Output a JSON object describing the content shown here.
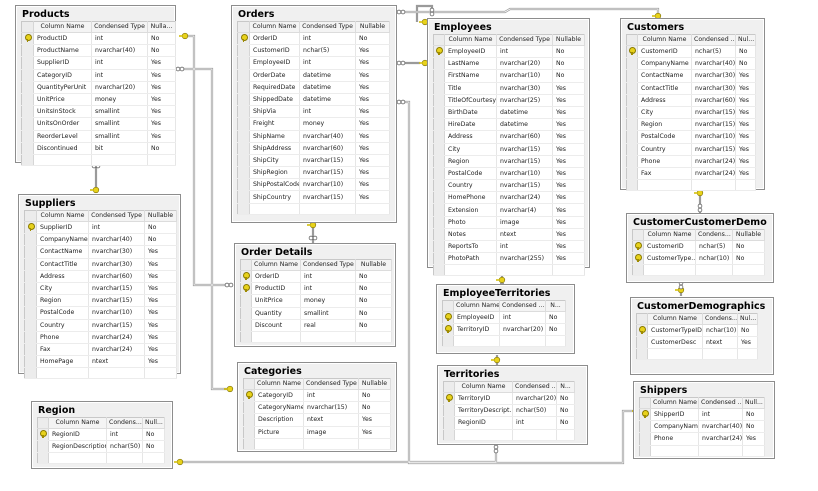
{
  "diagram": {
    "tool": "Database Diagram",
    "header_labels": {
      "column_name": "Column Name",
      "condensed_type": "Condensed Type",
      "nullable": "Nullable"
    },
    "colors": {
      "border": "#8d8d8d",
      "key": "#e8d21c",
      "line": "#888888",
      "background": "#ffffff"
    }
  },
  "tables": {
    "products": {
      "title": "Products",
      "headers": [
        "Column Name",
        "Condensed Type",
        "Nulla..."
      ],
      "rows": [
        {
          "pk": true,
          "name": "ProductID",
          "type": "int",
          "nullable": "No"
        },
        {
          "pk": false,
          "name": "ProductName",
          "type": "nvarchar(40)",
          "nullable": "No"
        },
        {
          "pk": false,
          "name": "SupplierID",
          "type": "int",
          "nullable": "Yes"
        },
        {
          "pk": false,
          "name": "CategoryID",
          "type": "int",
          "nullable": "Yes"
        },
        {
          "pk": false,
          "name": "QuantityPerUnit",
          "type": "nvarchar(20)",
          "nullable": "Yes"
        },
        {
          "pk": false,
          "name": "UnitPrice",
          "type": "money",
          "nullable": "Yes"
        },
        {
          "pk": false,
          "name": "UnitsInStock",
          "type": "smallint",
          "nullable": "Yes"
        },
        {
          "pk": false,
          "name": "UnitsOnOrder",
          "type": "smallint",
          "nullable": "Yes"
        },
        {
          "pk": false,
          "name": "ReorderLevel",
          "type": "smallint",
          "nullable": "Yes"
        },
        {
          "pk": false,
          "name": "Discontinued",
          "type": "bit",
          "nullable": "No"
        }
      ]
    },
    "suppliers": {
      "title": "Suppliers",
      "headers": [
        "Column Name",
        "Condensed Type",
        "Nullable"
      ],
      "rows": [
        {
          "pk": true,
          "name": "SupplierID",
          "type": "int",
          "nullable": "No"
        },
        {
          "pk": false,
          "name": "CompanyName",
          "type": "nvarchar(40)",
          "nullable": "No"
        },
        {
          "pk": false,
          "name": "ContactName",
          "type": "nvarchar(30)",
          "nullable": "Yes"
        },
        {
          "pk": false,
          "name": "ContactTitle",
          "type": "nvarchar(30)",
          "nullable": "Yes"
        },
        {
          "pk": false,
          "name": "Address",
          "type": "nvarchar(60)",
          "nullable": "Yes"
        },
        {
          "pk": false,
          "name": "City",
          "type": "nvarchar(15)",
          "nullable": "Yes"
        },
        {
          "pk": false,
          "name": "Region",
          "type": "nvarchar(15)",
          "nullable": "Yes"
        },
        {
          "pk": false,
          "name": "PostalCode",
          "type": "nvarchar(10)",
          "nullable": "Yes"
        },
        {
          "pk": false,
          "name": "Country",
          "type": "nvarchar(15)",
          "nullable": "Yes"
        },
        {
          "pk": false,
          "name": "Phone",
          "type": "nvarchar(24)",
          "nullable": "Yes"
        },
        {
          "pk": false,
          "name": "Fax",
          "type": "nvarchar(24)",
          "nullable": "Yes"
        },
        {
          "pk": false,
          "name": "HomePage",
          "type": "ntext",
          "nullable": "Yes"
        }
      ]
    },
    "region": {
      "title": "Region",
      "headers": [
        "Column Name",
        "Condens...",
        "Null..."
      ],
      "rows": [
        {
          "pk": true,
          "name": "RegionID",
          "type": "int",
          "nullable": "No"
        },
        {
          "pk": false,
          "name": "RegionDescription",
          "type": "nchar(50)",
          "nullable": "No"
        }
      ]
    },
    "orders": {
      "title": "Orders",
      "headers": [
        "Column Name",
        "Condensed Type",
        "Nullable"
      ],
      "rows": [
        {
          "pk": true,
          "name": "OrderID",
          "type": "int",
          "nullable": "No"
        },
        {
          "pk": false,
          "name": "CustomerID",
          "type": "nchar(5)",
          "nullable": "Yes"
        },
        {
          "pk": false,
          "name": "EmployeeID",
          "type": "int",
          "nullable": "Yes"
        },
        {
          "pk": false,
          "name": "OrderDate",
          "type": "datetime",
          "nullable": "Yes"
        },
        {
          "pk": false,
          "name": "RequiredDate",
          "type": "datetime",
          "nullable": "Yes"
        },
        {
          "pk": false,
          "name": "ShippedDate",
          "type": "datetime",
          "nullable": "Yes"
        },
        {
          "pk": false,
          "name": "ShipVia",
          "type": "int",
          "nullable": "Yes"
        },
        {
          "pk": false,
          "name": "Freight",
          "type": "money",
          "nullable": "Yes"
        },
        {
          "pk": false,
          "name": "ShipName",
          "type": "nvarchar(40)",
          "nullable": "Yes"
        },
        {
          "pk": false,
          "name": "ShipAddress",
          "type": "nvarchar(60)",
          "nullable": "Yes"
        },
        {
          "pk": false,
          "name": "ShipCity",
          "type": "nvarchar(15)",
          "nullable": "Yes"
        },
        {
          "pk": false,
          "name": "ShipRegion",
          "type": "nvarchar(15)",
          "nullable": "Yes"
        },
        {
          "pk": false,
          "name": "ShipPostalCode",
          "type": "nvarchar(10)",
          "nullable": "Yes"
        },
        {
          "pk": false,
          "name": "ShipCountry",
          "type": "nvarchar(15)",
          "nullable": "Yes"
        }
      ]
    },
    "order_details": {
      "title": "Order Details",
      "headers": [
        "Column Name",
        "Condensed Type",
        "Nullable"
      ],
      "rows": [
        {
          "pk": true,
          "name": "OrderID",
          "type": "int",
          "nullable": "No"
        },
        {
          "pk": true,
          "name": "ProductID",
          "type": "int",
          "nullable": "No"
        },
        {
          "pk": false,
          "name": "UnitPrice",
          "type": "money",
          "nullable": "No"
        },
        {
          "pk": false,
          "name": "Quantity",
          "type": "smallint",
          "nullable": "No"
        },
        {
          "pk": false,
          "name": "Discount",
          "type": "real",
          "nullable": "No"
        }
      ]
    },
    "categories": {
      "title": "Categories",
      "headers": [
        "Column Name",
        "Condensed Type",
        "Nullable"
      ],
      "rows": [
        {
          "pk": true,
          "name": "CategoryID",
          "type": "int",
          "nullable": "No"
        },
        {
          "pk": false,
          "name": "CategoryName",
          "type": "nvarchar(15)",
          "nullable": "No"
        },
        {
          "pk": false,
          "name": "Description",
          "type": "ntext",
          "nullable": "Yes"
        },
        {
          "pk": false,
          "name": "Picture",
          "type": "image",
          "nullable": "Yes"
        }
      ]
    },
    "employees": {
      "title": "Employees",
      "headers": [
        "Column Name",
        "Condensed Type",
        "Nullable"
      ],
      "rows": [
        {
          "pk": true,
          "name": "EmployeeID",
          "type": "int",
          "nullable": "No"
        },
        {
          "pk": false,
          "name": "LastName",
          "type": "nvarchar(20)",
          "nullable": "No"
        },
        {
          "pk": false,
          "name": "FirstName",
          "type": "nvarchar(10)",
          "nullable": "No"
        },
        {
          "pk": false,
          "name": "Title",
          "type": "nvarchar(30)",
          "nullable": "Yes"
        },
        {
          "pk": false,
          "name": "TitleOfCourtesy",
          "type": "nvarchar(25)",
          "nullable": "Yes"
        },
        {
          "pk": false,
          "name": "BirthDate",
          "type": "datetime",
          "nullable": "Yes"
        },
        {
          "pk": false,
          "name": "HireDate",
          "type": "datetime",
          "nullable": "Yes"
        },
        {
          "pk": false,
          "name": "Address",
          "type": "nvarchar(60)",
          "nullable": "Yes"
        },
        {
          "pk": false,
          "name": "City",
          "type": "nvarchar(15)",
          "nullable": "Yes"
        },
        {
          "pk": false,
          "name": "Region",
          "type": "nvarchar(15)",
          "nullable": "Yes"
        },
        {
          "pk": false,
          "name": "PostalCode",
          "type": "nvarchar(10)",
          "nullable": "Yes"
        },
        {
          "pk": false,
          "name": "Country",
          "type": "nvarchar(15)",
          "nullable": "Yes"
        },
        {
          "pk": false,
          "name": "HomePhone",
          "type": "nvarchar(24)",
          "nullable": "Yes"
        },
        {
          "pk": false,
          "name": "Extension",
          "type": "nvarchar(4)",
          "nullable": "Yes"
        },
        {
          "pk": false,
          "name": "Photo",
          "type": "image",
          "nullable": "Yes"
        },
        {
          "pk": false,
          "name": "Notes",
          "type": "ntext",
          "nullable": "Yes"
        },
        {
          "pk": false,
          "name": "ReportsTo",
          "type": "int",
          "nullable": "Yes"
        },
        {
          "pk": false,
          "name": "PhotoPath",
          "type": "nvarchar(255)",
          "nullable": "Yes"
        }
      ]
    },
    "employee_territories": {
      "title": "EmployeeTerritories",
      "headers": [
        "Column Name",
        "Condensed ...",
        "N..."
      ],
      "rows": [
        {
          "pk": true,
          "name": "EmployeeID",
          "type": "int",
          "nullable": "No"
        },
        {
          "pk": true,
          "name": "TerritoryID",
          "type": "nvarchar(20)",
          "nullable": "No"
        }
      ]
    },
    "territories": {
      "title": "Territories",
      "headers": [
        "Column Name",
        "Condensed ...",
        "N..."
      ],
      "rows": [
        {
          "pk": true,
          "name": "TerritoryID",
          "type": "nvarchar(20)",
          "nullable": "No"
        },
        {
          "pk": false,
          "name": "TerritoryDescript...",
          "type": "nchar(50)",
          "nullable": "No"
        },
        {
          "pk": false,
          "name": "RegionID",
          "type": "int",
          "nullable": "No"
        }
      ]
    },
    "customers": {
      "title": "Customers",
      "headers": [
        "Column Name",
        "Condensed ...",
        "Nul..."
      ],
      "rows": [
        {
          "pk": true,
          "name": "CustomerID",
          "type": "nchar(5)",
          "nullable": "No"
        },
        {
          "pk": false,
          "name": "CompanyName",
          "type": "nvarchar(40)",
          "nullable": "No"
        },
        {
          "pk": false,
          "name": "ContactName",
          "type": "nvarchar(30)",
          "nullable": "Yes"
        },
        {
          "pk": false,
          "name": "ContactTitle",
          "type": "nvarchar(30)",
          "nullable": "Yes"
        },
        {
          "pk": false,
          "name": "Address",
          "type": "nvarchar(60)",
          "nullable": "Yes"
        },
        {
          "pk": false,
          "name": "City",
          "type": "nvarchar(15)",
          "nullable": "Yes"
        },
        {
          "pk": false,
          "name": "Region",
          "type": "nvarchar(15)",
          "nullable": "Yes"
        },
        {
          "pk": false,
          "name": "PostalCode",
          "type": "nvarchar(10)",
          "nullable": "Yes"
        },
        {
          "pk": false,
          "name": "Country",
          "type": "nvarchar(15)",
          "nullable": "Yes"
        },
        {
          "pk": false,
          "name": "Phone",
          "type": "nvarchar(24)",
          "nullable": "Yes"
        },
        {
          "pk": false,
          "name": "Fax",
          "type": "nvarchar(24)",
          "nullable": "Yes"
        }
      ]
    },
    "customer_customer_demo": {
      "title": "CustomerCustomerDemo",
      "headers": [
        "Column Name",
        "Condens...",
        "Nullable"
      ],
      "rows": [
        {
          "pk": true,
          "name": "CustomerID",
          "type": "nchar(5)",
          "nullable": "No"
        },
        {
          "pk": true,
          "name": "CustomerType...",
          "type": "nchar(10)",
          "nullable": "No"
        }
      ]
    },
    "customer_demographics": {
      "title": "CustomerDemographics",
      "headers": [
        "Column Name",
        "Condens...",
        "Nul..."
      ],
      "rows": [
        {
          "pk": true,
          "name": "CustomerTypeID",
          "type": "nchar(10)",
          "nullable": "No"
        },
        {
          "pk": false,
          "name": "CustomerDesc",
          "type": "ntext",
          "nullable": "Yes"
        }
      ]
    },
    "shippers": {
      "title": "Shippers",
      "headers": [
        "Column Name",
        "Condensed ...",
        "Null..."
      ],
      "rows": [
        {
          "pk": true,
          "name": "ShipperID",
          "type": "int",
          "nullable": "No"
        },
        {
          "pk": false,
          "name": "CompanyName",
          "type": "nvarchar(40)",
          "nullable": "No"
        },
        {
          "pk": false,
          "name": "Phone",
          "type": "nvarchar(24)",
          "nullable": "Yes"
        }
      ]
    }
  },
  "relationships": [
    {
      "from": "Products",
      "to": "Order Details",
      "one_end": "Products",
      "many_end": "Order Details"
    },
    {
      "from": "Suppliers",
      "to": "Products",
      "one_end": "Suppliers",
      "many_end": "Products"
    },
    {
      "from": "Categories",
      "to": "Products",
      "one_end": "Categories",
      "many_end": "Products"
    },
    {
      "from": "Orders",
      "to": "Order Details",
      "one_end": "Orders",
      "many_end": "Order Details"
    },
    {
      "from": "Employees",
      "to": "Orders",
      "one_end": "Employees",
      "many_end": "Orders"
    },
    {
      "from": "Customers",
      "to": "Orders",
      "one_end": "Customers",
      "many_end": "Orders"
    },
    {
      "from": "Shippers",
      "to": "Orders",
      "one_end": "Shippers",
      "many_end": "Orders"
    },
    {
      "from": "Employees",
      "to": "Employees",
      "one_end": "Employees",
      "many_end": "Employees"
    },
    {
      "from": "Employees",
      "to": "EmployeeTerritories",
      "one_end": "Employees",
      "many_end": "EmployeeTerritories"
    },
    {
      "from": "Territories",
      "to": "EmployeeTerritories",
      "one_end": "Territories",
      "many_end": "EmployeeTerritories"
    },
    {
      "from": "Region",
      "to": "Territories",
      "one_end": "Region",
      "many_end": "Territories"
    },
    {
      "from": "Customers",
      "to": "CustomerCustomerDemo",
      "one_end": "Customers",
      "many_end": "CustomerCustomerDemo"
    },
    {
      "from": "CustomerDemographics",
      "to": "CustomerCustomerDemo",
      "one_end": "CustomerDemographics",
      "many_end": "CustomerCustomerDemo"
    }
  ]
}
